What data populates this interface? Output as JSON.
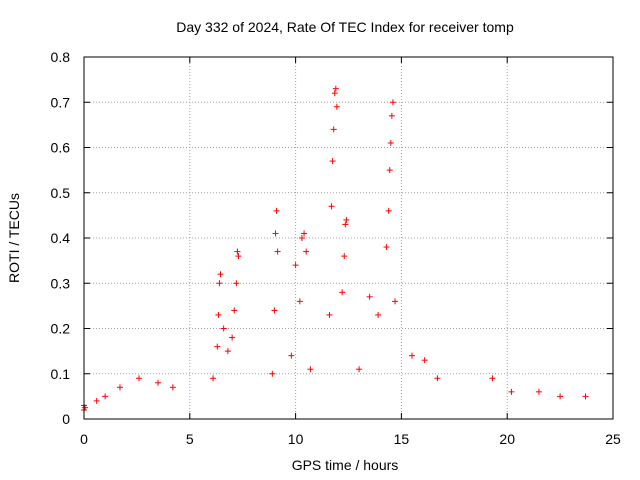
{
  "chart_data": {
    "type": "scatter",
    "title": "Day 332 of 2024, Rate Of TEC Index for receiver tomp",
    "xlabel": "GPS time / hours",
    "ylabel": "ROTI / TECUs",
    "xlim": [
      0,
      25
    ],
    "ylim": [
      0,
      0.8
    ],
    "xticks": [
      0,
      5,
      10,
      15,
      20,
      25
    ],
    "yticks": [
      0,
      0.1,
      0.2,
      0.3,
      0.4,
      0.5,
      0.6,
      0.7,
      0.8
    ],
    "x_tick_labels": [
      "0",
      "5",
      "10",
      "15",
      "20",
      "25"
    ],
    "y_tick_labels": [
      "0",
      "0.1",
      "0.2",
      "0.3",
      "0.4",
      "0.5",
      "0.6",
      "0.7",
      "0.8"
    ],
    "grid": true,
    "legend": "none",
    "marker": "+",
    "color": "#ff0000",
    "series": [
      {
        "points": [
          [
            0.0,
            0.02
          ],
          [
            0.0,
            0.03
          ],
          [
            0.05,
            0.025
          ],
          [
            0.6,
            0.04
          ],
          [
            1.0,
            0.05
          ],
          [
            1.7,
            0.07
          ],
          [
            2.6,
            0.09
          ],
          [
            3.5,
            0.08
          ],
          [
            4.2,
            0.07
          ],
          [
            6.1,
            0.09
          ],
          [
            6.3,
            0.16
          ],
          [
            6.35,
            0.23
          ],
          [
            6.4,
            0.3
          ],
          [
            6.45,
            0.32
          ],
          [
            6.6,
            0.2
          ],
          [
            6.8,
            0.15
          ],
          [
            7.0,
            0.18
          ],
          [
            7.1,
            0.24
          ],
          [
            7.2,
            0.3
          ],
          [
            7.25,
            0.37
          ],
          [
            7.3,
            0.36
          ],
          [
            8.9,
            0.1
          ],
          [
            9.0,
            0.24
          ],
          [
            9.05,
            0.41
          ],
          [
            9.1,
            0.46
          ],
          [
            9.15,
            0.37
          ],
          [
            9.8,
            0.14
          ],
          [
            10.0,
            0.34
          ],
          [
            10.2,
            0.26
          ],
          [
            10.3,
            0.4
          ],
          [
            10.4,
            0.41
          ],
          [
            10.5,
            0.37
          ],
          [
            10.7,
            0.11
          ],
          [
            11.6,
            0.23
          ],
          [
            11.7,
            0.47
          ],
          [
            11.75,
            0.57
          ],
          [
            11.8,
            0.64
          ],
          [
            11.85,
            0.72
          ],
          [
            11.9,
            0.73
          ],
          [
            11.95,
            0.69
          ],
          [
            12.2,
            0.28
          ],
          [
            12.3,
            0.36
          ],
          [
            12.35,
            0.43
          ],
          [
            12.4,
            0.44
          ],
          [
            13.0,
            0.11
          ],
          [
            13.5,
            0.27
          ],
          [
            13.9,
            0.23
          ],
          [
            14.3,
            0.38
          ],
          [
            14.4,
            0.46
          ],
          [
            14.45,
            0.55
          ],
          [
            14.5,
            0.61
          ],
          [
            14.55,
            0.67
          ],
          [
            14.6,
            0.7
          ],
          [
            14.7,
            0.26
          ],
          [
            15.5,
            0.14
          ],
          [
            16.1,
            0.13
          ],
          [
            16.7,
            0.09
          ],
          [
            19.3,
            0.09
          ],
          [
            20.2,
            0.06
          ],
          [
            21.5,
            0.06
          ],
          [
            22.5,
            0.05
          ],
          [
            23.7,
            0.05
          ]
        ]
      }
    ]
  }
}
